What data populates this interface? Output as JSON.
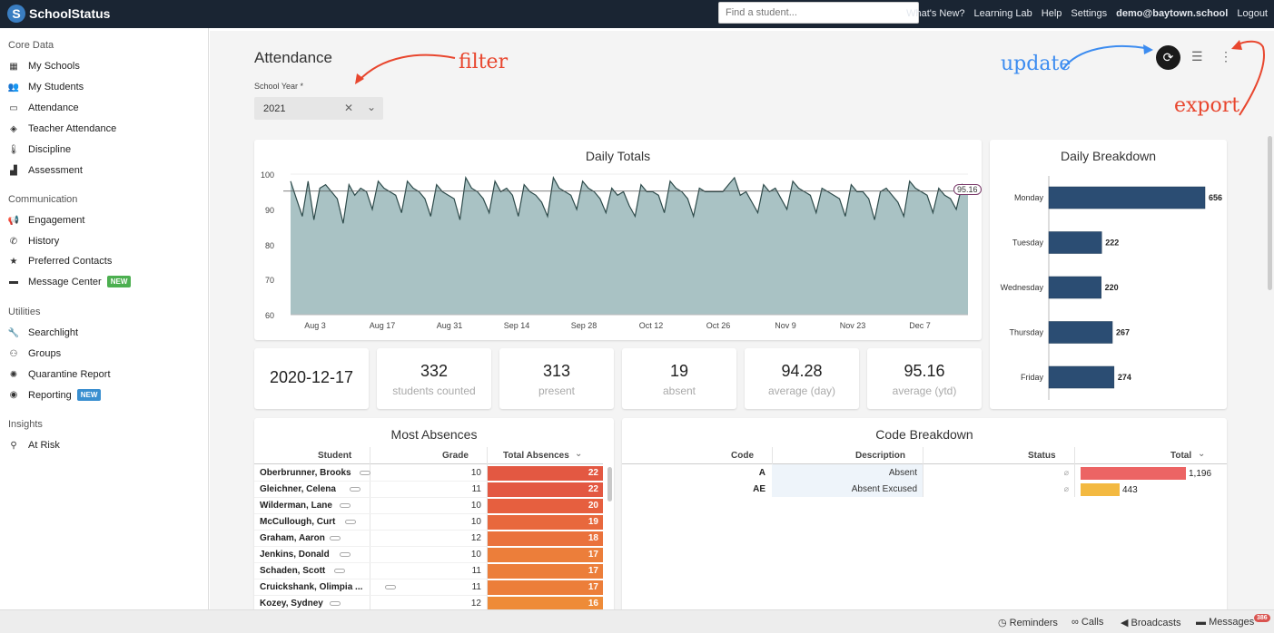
{
  "app": {
    "name": "SchoolStatus",
    "logo_letter": "S"
  },
  "topbar": {
    "search_placeholder": "Find a student...",
    "links": [
      "What's New?",
      "Learning Lab",
      "Help",
      "Settings"
    ],
    "user": "demo@baytown.school",
    "logout": "Logout"
  },
  "sidebar": {
    "sections": [
      {
        "title": "Core Data",
        "items": [
          {
            "label": "My Schools",
            "icon": "school-icon"
          },
          {
            "label": "My Students",
            "icon": "students-icon"
          },
          {
            "label": "Attendance",
            "icon": "calendar-icon"
          },
          {
            "label": "Teacher Attendance",
            "icon": "ticket-icon"
          },
          {
            "label": "Discipline",
            "icon": "thermometer-icon"
          },
          {
            "label": "Assessment",
            "icon": "bar-chart-icon"
          }
        ]
      },
      {
        "title": "Communication",
        "items": [
          {
            "label": "Engagement",
            "icon": "megaphone-icon"
          },
          {
            "label": "History",
            "icon": "phone-icon"
          },
          {
            "label": "Preferred Contacts",
            "icon": "star-icon"
          },
          {
            "label": "Message Center",
            "icon": "inbox-icon",
            "badge": "NEW"
          }
        ]
      },
      {
        "title": "Utilities",
        "items": [
          {
            "label": "Searchlight",
            "icon": "wrench-icon"
          },
          {
            "label": "Groups",
            "icon": "group-icon"
          },
          {
            "label": "Quarantine Report",
            "icon": "virus-icon"
          },
          {
            "label": "Reporting",
            "icon": "record-icon",
            "badge": "NEW"
          }
        ]
      },
      {
        "title": "Insights",
        "items": [
          {
            "label": "At Risk",
            "icon": "person-down-icon"
          }
        ]
      }
    ],
    "badge_colors": {
      "Message Center": "#4caf50",
      "Reporting": "#3a8fd0"
    }
  },
  "page": {
    "title": "Attendance",
    "school_year_label": "School Year *",
    "school_year_value": "2021"
  },
  "annotations": {
    "filter": "filter",
    "update": "update",
    "export": "export",
    "filter_color": "#e8462e",
    "update_color": "#3c8cf0",
    "export_color": "#e8462e"
  },
  "daily_totals": {
    "title": "Daily Totals",
    "badge": "95.16",
    "x_labels": [
      "Aug 3",
      "Aug 17",
      "Aug 31",
      "Sep 14",
      "Sep 28",
      "Oct 12",
      "Oct 26",
      "Nov 9",
      "Nov 23",
      "Dec 7"
    ],
    "y_labels": [
      "100",
      "90",
      "80",
      "70",
      "60"
    ]
  },
  "chart_data": [
    {
      "type": "area",
      "title": "Daily Totals",
      "ylim": [
        60,
        100
      ],
      "y_ticks": [
        60,
        70,
        80,
        90,
        100
      ],
      "x_ticks": [
        "Aug 3",
        "Aug 17",
        "Aug 31",
        "Sep 14",
        "Sep 28",
        "Oct 12",
        "Oct 26",
        "Nov 9",
        "Nov 23",
        "Dec 7"
      ],
      "reference_line": 95.16,
      "series": [
        {
          "values": [
            98,
            93,
            88,
            98,
            87,
            96,
            97,
            95,
            93,
            86,
            97,
            94,
            96,
            95,
            90,
            98,
            96,
            95,
            94,
            89,
            98,
            96,
            95,
            93,
            88,
            97,
            95,
            94,
            93,
            87,
            99,
            96,
            95,
            93,
            89,
            98,
            95,
            96,
            94,
            88,
            97,
            95,
            94,
            92,
            88,
            99,
            96,
            95,
            94,
            90,
            98,
            96,
            95,
            93,
            89,
            96,
            94,
            95,
            91,
            88,
            97,
            95,
            95,
            94,
            89,
            98,
            96,
            95,
            93,
            88,
            96,
            95,
            95,
            95,
            95,
            97,
            99,
            94,
            95,
            92,
            89,
            97,
            95,
            96,
            93,
            90,
            98,
            96,
            95,
            94,
            89,
            96,
            95,
            94,
            93,
            88,
            97,
            95,
            95,
            93,
            87,
            95,
            96,
            94,
            92,
            88,
            98,
            96,
            95,
            94,
            89,
            96,
            94,
            93,
            90,
            97,
            95
          ]
        }
      ]
    },
    {
      "type": "bar",
      "title": "Daily Breakdown",
      "categories": [
        "Monday",
        "Tuesday",
        "Wednesday",
        "Thursday",
        "Friday"
      ],
      "values": [
        656,
        222,
        220,
        267,
        274
      ]
    },
    {
      "type": "table",
      "title": "Most Absences",
      "columns": [
        "Student",
        "Grade",
        "Total Absences"
      ],
      "rows": [
        [
          "Oberbrunner, Brooks",
          10,
          22
        ],
        [
          "Gleichner, Celena",
          11,
          22
        ],
        [
          "Wilderman, Lane",
          10,
          20
        ],
        [
          "McCullough, Curt",
          10,
          19
        ],
        [
          "Graham, Aaron",
          12,
          18
        ],
        [
          "Jenkins, Donald",
          10,
          17
        ],
        [
          "Schaden, Scott",
          11,
          17
        ],
        [
          "Cruickshank, Olimpia ...",
          11,
          17
        ],
        [
          "Kozey, Sydney",
          12,
          16
        ]
      ]
    },
    {
      "type": "table",
      "title": "Code Breakdown",
      "columns": [
        "Code",
        "Description",
        "Status",
        "Total"
      ],
      "rows": [
        [
          "A",
          "Absent",
          "⌀",
          1196
        ],
        [
          "AE",
          "Absent Excused",
          "⌀",
          443
        ]
      ],
      "total_labels": [
        "1,196",
        "443"
      ]
    }
  ],
  "stats": [
    {
      "value": "2020-12-17",
      "label": ""
    },
    {
      "value": "332",
      "label": "students counted"
    },
    {
      "value": "313",
      "label": "present"
    },
    {
      "value": "19",
      "label": "absent"
    },
    {
      "value": "94.28",
      "label": "average (day)"
    },
    {
      "value": "95.16",
      "label": "average (ytd)"
    }
  ],
  "most_absences": {
    "title": "Most Absences",
    "headers": {
      "student": "Student",
      "grade": "Grade",
      "total": "Total Absences"
    }
  },
  "code_breakdown": {
    "title": "Code Breakdown",
    "headers": {
      "code": "Code",
      "description": "Description",
      "status": "Status",
      "total": "Total"
    },
    "bar_colors": [
      "#ec6464",
      "#f3b941"
    ]
  },
  "bottombar": {
    "items": [
      "Reminders",
      "Calls",
      "Broadcasts",
      "Messages"
    ],
    "message_count": "386"
  },
  "colors": {
    "topbar": "#1a2533",
    "area_fill": "#a9c2c4",
    "area_line": "#2d4a4a",
    "bar": "#2b4d73"
  }
}
